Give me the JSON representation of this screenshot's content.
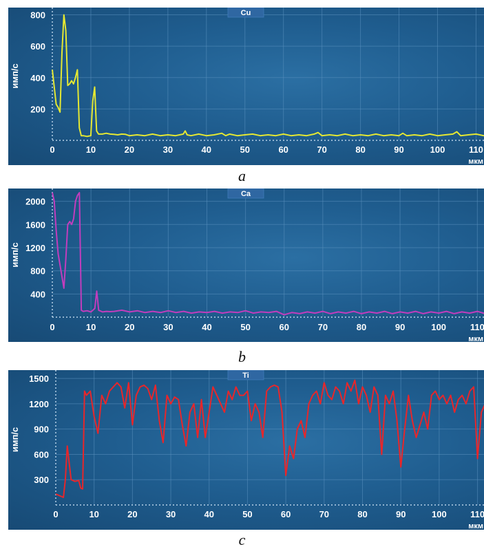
{
  "chart_data": [
    {
      "type": "line",
      "title": "Cu",
      "ylabel": "имп/с",
      "xlabel": "мкм",
      "caption": "a",
      "color": "#e5e832",
      "xlim": [
        0,
        116
      ],
      "ylim": [
        0,
        820
      ],
      "xticks": [
        0,
        10,
        20,
        30,
        40,
        50,
        60,
        70,
        80,
        90,
        100,
        110
      ],
      "yticks": [
        200,
        400,
        600,
        800
      ],
      "grid": true,
      "series": [
        {
          "x": [
            0,
            0.5,
            1,
            1.5,
            2,
            2.5,
            3,
            3.5,
            4,
            4.5,
            5,
            5.5,
            6,
            6.5,
            7,
            7.5,
            8,
            9,
            10,
            10.5,
            11,
            11.5,
            12,
            13,
            14,
            15,
            16,
            17,
            18,
            19,
            20,
            22,
            24,
            26,
            28,
            30,
            32,
            34,
            34.5,
            35,
            36,
            38,
            40,
            42,
            44,
            45,
            46,
            48,
            50,
            52,
            54,
            56,
            58,
            60,
            62,
            64,
            66,
            68,
            69,
            70,
            72,
            74,
            76,
            78,
            80,
            82,
            84,
            86,
            88,
            90,
            91,
            92,
            94,
            96,
            98,
            100,
            102,
            104,
            105,
            106,
            108,
            110,
            112,
            114,
            116
          ],
          "y": [
            450,
            340,
            230,
            210,
            180,
            560,
            800,
            700,
            350,
            360,
            380,
            360,
            400,
            450,
            80,
            30,
            30,
            25,
            30,
            250,
            340,
            60,
            40,
            40,
            45,
            40,
            38,
            35,
            40,
            38,
            30,
            35,
            30,
            40,
            30,
            35,
            30,
            40,
            60,
            35,
            30,
            40,
            30,
            35,
            45,
            30,
            40,
            30,
            35,
            40,
            30,
            35,
            30,
            40,
            30,
            35,
            30,
            40,
            50,
            30,
            35,
            30,
            40,
            30,
            35,
            30,
            40,
            30,
            35,
            30,
            45,
            30,
            35,
            30,
            40,
            30,
            35,
            40,
            55,
            30,
            35,
            40,
            30,
            35,
            30
          ]
        }
      ]
    },
    {
      "type": "line",
      "title": "Ca",
      "ylabel": "имп/с",
      "xlabel": "мкм",
      "caption": "b",
      "color": "#c23dbd",
      "xlim": [
        0,
        116
      ],
      "ylim": [
        0,
        2150
      ],
      "xticks": [
        0,
        10,
        20,
        30,
        40,
        50,
        60,
        70,
        80,
        90,
        100,
        110
      ],
      "yticks": [
        400,
        800,
        1200,
        1600,
        2000
      ],
      "grid": true,
      "series": [
        {
          "x": [
            0,
            0.5,
            1,
            1.5,
            2,
            2.5,
            3,
            3.5,
            4,
            4.5,
            5,
            5.5,
            6,
            6.5,
            7,
            7.5,
            8,
            9,
            10,
            11,
            11.5,
            12,
            13,
            14,
            15,
            16,
            18,
            20,
            22,
            24,
            26,
            28,
            30,
            32,
            34,
            36,
            38,
            40,
            42,
            44,
            46,
            48,
            50,
            52,
            54,
            56,
            58,
            60,
            62,
            64,
            66,
            68,
            70,
            72,
            74,
            76,
            78,
            80,
            82,
            84,
            86,
            88,
            90,
            92,
            94,
            96,
            98,
            100,
            102,
            104,
            106,
            108,
            110,
            112,
            114,
            116
          ],
          "y": [
            2150,
            2000,
            1500,
            1100,
            900,
            700,
            500,
            1000,
            1600,
            1650,
            1600,
            1700,
            2000,
            2100,
            2150,
            120,
            100,
            110,
            90,
            150,
            450,
            120,
            90,
            100,
            95,
            100,
            120,
            90,
            110,
            80,
            100,
            80,
            110,
            80,
            100,
            70,
            90,
            80,
            100,
            70,
            90,
            80,
            110,
            70,
            90,
            80,
            100,
            40,
            80,
            60,
            90,
            70,
            100,
            60,
            90,
            70,
            100,
            60,
            90,
            70,
            100,
            60,
            90,
            70,
            100,
            60,
            90,
            70,
            100,
            60,
            90,
            70,
            100,
            60,
            110,
            70
          ]
        }
      ]
    },
    {
      "type": "line",
      "title": "Ti",
      "ylabel": "имп/с",
      "xlabel": "мкм",
      "caption": "c",
      "color": "#e8262a",
      "xlim": [
        0,
        116
      ],
      "ylim": [
        0,
        1550
      ],
      "xticks": [
        0,
        10,
        20,
        30,
        40,
        50,
        60,
        70,
        80,
        90,
        100,
        110
      ],
      "yticks": [
        300,
        600,
        900,
        1200,
        1500
      ],
      "grid": true,
      "series": [
        {
          "x": [
            0,
            1,
            2,
            2.5,
            3,
            3.5,
            4,
            5,
            6,
            6.5,
            7,
            7.5,
            8,
            9,
            10,
            11,
            12,
            13,
            14,
            15,
            16,
            17,
            18,
            19,
            20,
            21,
            22,
            23,
            24,
            25,
            26,
            27,
            28,
            29,
            30,
            31,
            32,
            33,
            34,
            35,
            36,
            37,
            38,
            39,
            40,
            41,
            42,
            43,
            44,
            45,
            46,
            47,
            48,
            49,
            50,
            51,
            52,
            53,
            54,
            55,
            56,
            57,
            58,
            59,
            60,
            61,
            62,
            63,
            64,
            65,
            66,
            67,
            68,
            69,
            70,
            71,
            72,
            73,
            74,
            75,
            76,
            77,
            78,
            79,
            80,
            81,
            82,
            83,
            84,
            85,
            86,
            87,
            88,
            89,
            90,
            91,
            92,
            93,
            94,
            95,
            96,
            97,
            98,
            99,
            100,
            101,
            102,
            103,
            104,
            105,
            106,
            107,
            108,
            109,
            110,
            111,
            112,
            113,
            114,
            115,
            116
          ],
          "y": [
            130,
            110,
            90,
            300,
            700,
            500,
            300,
            280,
            290,
            200,
            190,
            1350,
            1300,
            1350,
            1050,
            850,
            1300,
            1200,
            1350,
            1400,
            1450,
            1400,
            1150,
            1450,
            950,
            1300,
            1400,
            1420,
            1380,
            1250,
            1420,
            1000,
            740,
            1300,
            1200,
            1280,
            1250,
            950,
            700,
            1100,
            1200,
            800,
            1250,
            800,
            1100,
            1400,
            1300,
            1200,
            1100,
            1350,
            1250,
            1400,
            1300,
            1300,
            1350,
            1000,
            1200,
            1100,
            800,
            1350,
            1400,
            1420,
            1400,
            1100,
            350,
            700,
            550,
            900,
            1000,
            800,
            1200,
            1300,
            1350,
            1200,
            1450,
            1300,
            1250,
            1400,
            1350,
            1200,
            1450,
            1350,
            1480,
            1200,
            1400,
            1300,
            1100,
            1400,
            1300,
            600,
            1300,
            1200,
            1350,
            1000,
            450,
            900,
            1300,
            1000,
            800,
            950,
            1100,
            900,
            1300,
            1350,
            1250,
            1300,
            1200,
            1300,
            1100,
            1250,
            1300,
            1200,
            1350,
            1400,
            550,
            1100,
            1200,
            1350,
            1460,
            1300,
            850
          ]
        }
      ]
    }
  ]
}
